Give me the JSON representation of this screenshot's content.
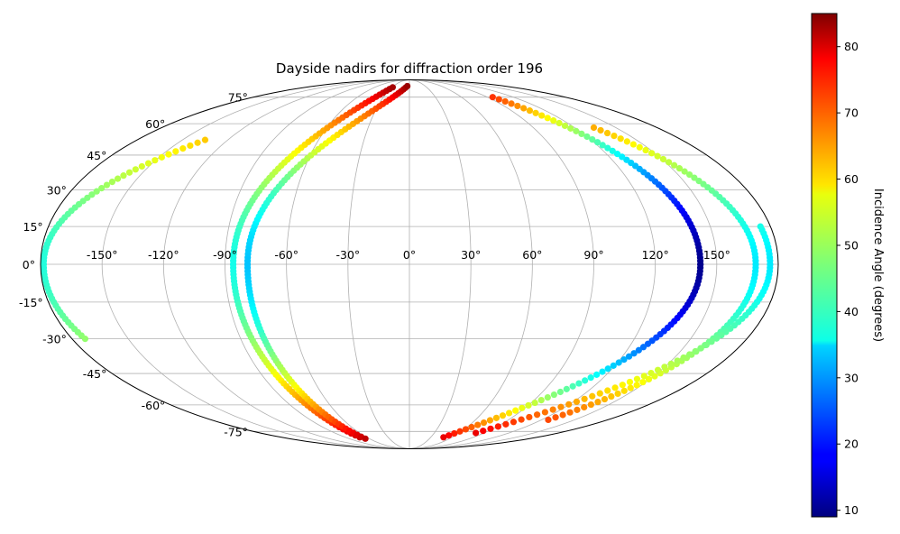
{
  "chart_data": {
    "type": "scatter",
    "projection": "mollweide",
    "title": "Dayside nadirs for diffraction order 196",
    "grid": true,
    "lon_ticks": [
      -150,
      -120,
      -90,
      -60,
      -30,
      0,
      30,
      60,
      90,
      120,
      150
    ],
    "lon_tick_labels": [
      "-150°",
      "-120°",
      "-90°",
      "-60°",
      "-30°",
      "0°",
      "30°",
      "60°",
      "90°",
      "120°",
      "150°"
    ],
    "lat_ticks": [
      75,
      60,
      45,
      30,
      15,
      0,
      -15,
      -30,
      -45,
      -60,
      -75
    ],
    "lat_tick_labels": [
      "75°",
      "60°",
      "45°",
      "30°",
      "15°",
      "0°",
      "-15°",
      "-30°",
      "-45°",
      "-60°",
      "-75°"
    ],
    "colorbar": {
      "label": "Incidence Angle (degrees)",
      "cmap": "jet",
      "range": [
        9,
        85
      ],
      "ticks": [
        10,
        20,
        30,
        40,
        50,
        60,
        70,
        80
      ],
      "tick_labels": [
        "10",
        "20",
        "30",
        "40",
        "50",
        "60",
        "70",
        "80"
      ],
      "position": "right"
    },
    "tracks": [
      {
        "lon_at_equator": -178.5,
        "lon_end_north": -135,
        "lon_end_south": -173,
        "lat_end_north": 52,
        "lat_end_south": -30,
        "inc_min": 40
      },
      {
        "lon_at_equator": -86,
        "lon_end_north": -29,
        "lon_end_south": -70,
        "lat_end_north": 82,
        "lat_end_south": -79,
        "inc_min": 39
      },
      {
        "lon_at_equator": -79,
        "lon_end_north": -4,
        "lon_end_south": -66,
        "lat_end_north": 83,
        "lat_end_south": -80,
        "inc_min": 33
      },
      {
        "lon_at_equator": 142,
        "lon_end_north": 96,
        "lon_end_south": 48,
        "lat_end_north": 75,
        "lat_end_south": -79,
        "inc_min": 10
      },
      {
        "lon_at_equator": 169,
        "lon_end_north": 134,
        "lon_end_south": 126,
        "lat_end_north": 58,
        "lat_end_south": -68,
        "inc_min": 36
      },
      {
        "lon_at_equator": 176,
        "lon_end_north": 175,
        "lon_end_south": 80,
        "lat_end_north": 15,
        "lat_end_south": -76,
        "inc_min": 36
      }
    ]
  }
}
